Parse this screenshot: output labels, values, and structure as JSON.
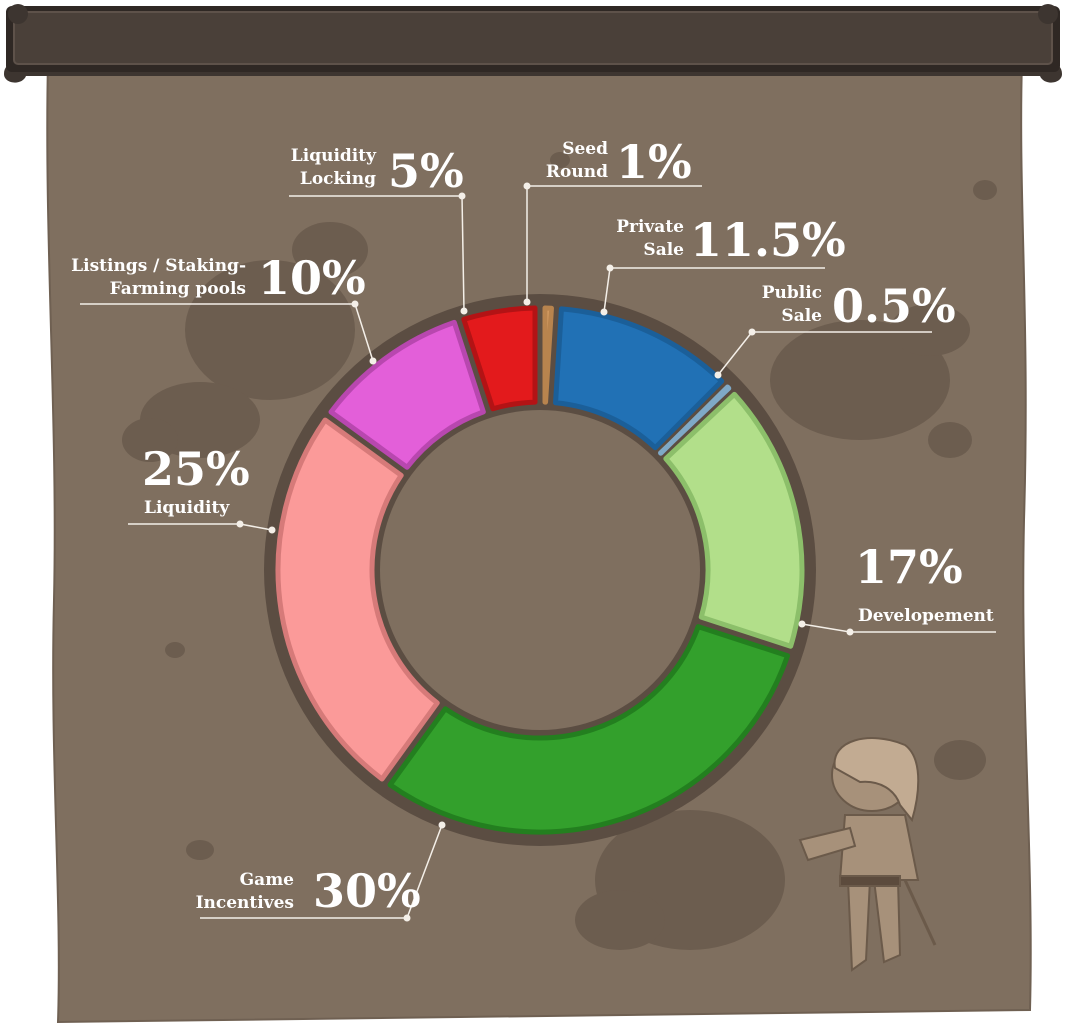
{
  "banner": {
    "title": ""
  },
  "colors": {
    "parchment": "#7f6f5f",
    "stain": "#6c5d4f",
    "ring_border": "#5b4d42",
    "leader": "#f4efe8",
    "banner_wood": "#4a4039"
  },
  "chart_data": {
    "type": "pie",
    "title": "",
    "donut": true,
    "unit": "%",
    "slices": [
      {
        "key": "seed",
        "label_lines": [
          "Seed",
          "Round"
        ],
        "value": 1,
        "value_text": "1%",
        "color": "#d9a066",
        "border": "#b8844e"
      },
      {
        "key": "private",
        "label_lines": [
          "Private",
          "Sale"
        ],
        "value": 11.5,
        "value_text": "11.5%",
        "color": "#2171b5",
        "border": "#1b5f99"
      },
      {
        "key": "public",
        "label_lines": [
          "Public",
          "Sale"
        ],
        "value": 0.5,
        "value_text": "0.5%",
        "color": "#a6cbe3",
        "border": "#7fa9c7"
      },
      {
        "key": "dev",
        "label_lines": [
          "Developement"
        ],
        "value": 17,
        "value_text": "17%",
        "color": "#b2df8a",
        "border": "#8cbf6a"
      },
      {
        "key": "game",
        "label_lines": [
          "Game",
          "Incentives"
        ],
        "value": 30,
        "value_text": "30%",
        "color": "#33a02c",
        "border": "#237f1f"
      },
      {
        "key": "liquidity",
        "label_lines": [
          "Liquidity"
        ],
        "value": 25,
        "value_text": "25%",
        "color": "#fb9a99",
        "border": "#d67a79"
      },
      {
        "key": "listings",
        "label_lines": [
          "Listings / Staking-",
          "Farming pools"
        ],
        "value": 10,
        "value_text": "10%",
        "color": "#e35fd9",
        "border": "#b847af"
      },
      {
        "key": "locking",
        "label_lines": [
          "Liquidity",
          "Locking"
        ],
        "value": 5,
        "value_text": "5%",
        "color": "#e31a1c",
        "border": "#b31315"
      }
    ]
  }
}
